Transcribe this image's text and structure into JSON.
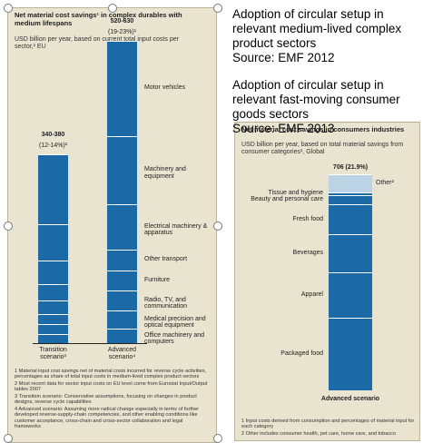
{
  "slide": {
    "captions": [
      {
        "text": "Adoption of circular setup in relevant medium-lived complex product sectors",
        "source": "Source: EMF 2012"
      },
      {
        "text": "Adoption of circular setup in relevant fast-moving consumer goods sectors",
        "source": "Source: EMF 2013"
      }
    ]
  },
  "chart_data": [
    {
      "type": "stacked-bar",
      "title": "Net material cost savings¹ in complex durables with medium lifespans",
      "subtitle": "USD billion per year, based on current total input costs per sector,² EU",
      "categories": [
        "Transition scenario³",
        "Advanced scenario⁴"
      ],
      "annotations": [
        [
          "340-380",
          "(12-14%)²"
        ],
        [
          "520-630",
          "(19-23%)¹"
        ]
      ],
      "series": [
        {
          "name": "Office machinery and computers",
          "color": "#1b6aa6",
          "values": [
            18,
            28
          ]
        },
        {
          "name": "Medical precision and optical equipment",
          "color": "#1b6aa6",
          "values": [
            19,
            35
          ]
        },
        {
          "name": "Radio, TV, and communication",
          "color": "#1b6aa6",
          "values": [
            19,
            38
          ]
        },
        {
          "name": "Furniture",
          "color": "#1b6aa6",
          "values": [
            25,
            38
          ]
        },
        {
          "name": "Other transport",
          "color": "#1b6aa6",
          "values": [
            32,
            40
          ]
        },
        {
          "name": "Electrical machinery & apparatus",
          "color": "#1b6aa6",
          "values": [
            44,
            86
          ]
        },
        {
          "name": "Machinery and equipment",
          "color": "#1b6aa6",
          "values": [
            70,
            130
          ]
        },
        {
          "name": "Motor vehicles",
          "color": "#1b6aa6",
          "values": [
            133,
            181
          ]
        }
      ],
      "footnotes": [
        "1 Material input cost savings net of material costs incurred for reverse cycle activities, percentages as share of total input costs in medium-lived complex product sectors",
        "2 Most recent data for sector input costs on EU level come from Eurostat Input/Output tables 2007",
        "3 Transition scenario: Conservative assumptions, focusing on changes in product designs, reverse cycle capabilities",
        "4 Advanced scenario: Assuming more radical change especially in terms of further developed reverse-supply-chain competencies, and other enabling conditions like customer acceptance, cross-chain and cross-sector collaboration and legal frameworks"
      ]
    },
    {
      "type": "stacked-bar",
      "title": "Net material cost savings in consumers industries",
      "subtitle": "USD billion per year, based on total material savings from consumer categories¹, Global",
      "categories": [
        "Advanced scenario"
      ],
      "annotations": [
        [
          "706 (21.9%)"
        ]
      ],
      "series": [
        {
          "name": "Packaged food",
          "color": "#1b6aa6",
          "values": [
            237
          ]
        },
        {
          "name": "Apparel",
          "color": "#1b6aa6",
          "values": [
            148
          ]
        },
        {
          "name": "Beverages",
          "color": "#1b6aa6",
          "values": [
            125
          ]
        },
        {
          "name": "Fresh food",
          "color": "#1b6aa6",
          "values": [
            98
          ]
        },
        {
          "name": "Beauty and personal care",
          "color": "#1b6aa6",
          "values": [
            30
          ]
        },
        {
          "name": "Tissue and hygiene",
          "color": "#1b6aa6",
          "values": [
            9
          ]
        },
        {
          "name": "Other²",
          "color": "#bcd3e6",
          "values": [
            59
          ]
        }
      ],
      "footnotes": [
        "1 Input costs derived from consumption and percentages of material input for each category",
        "2 Other includes consumer health, pet care, home care, and tobacco"
      ]
    }
  ]
}
